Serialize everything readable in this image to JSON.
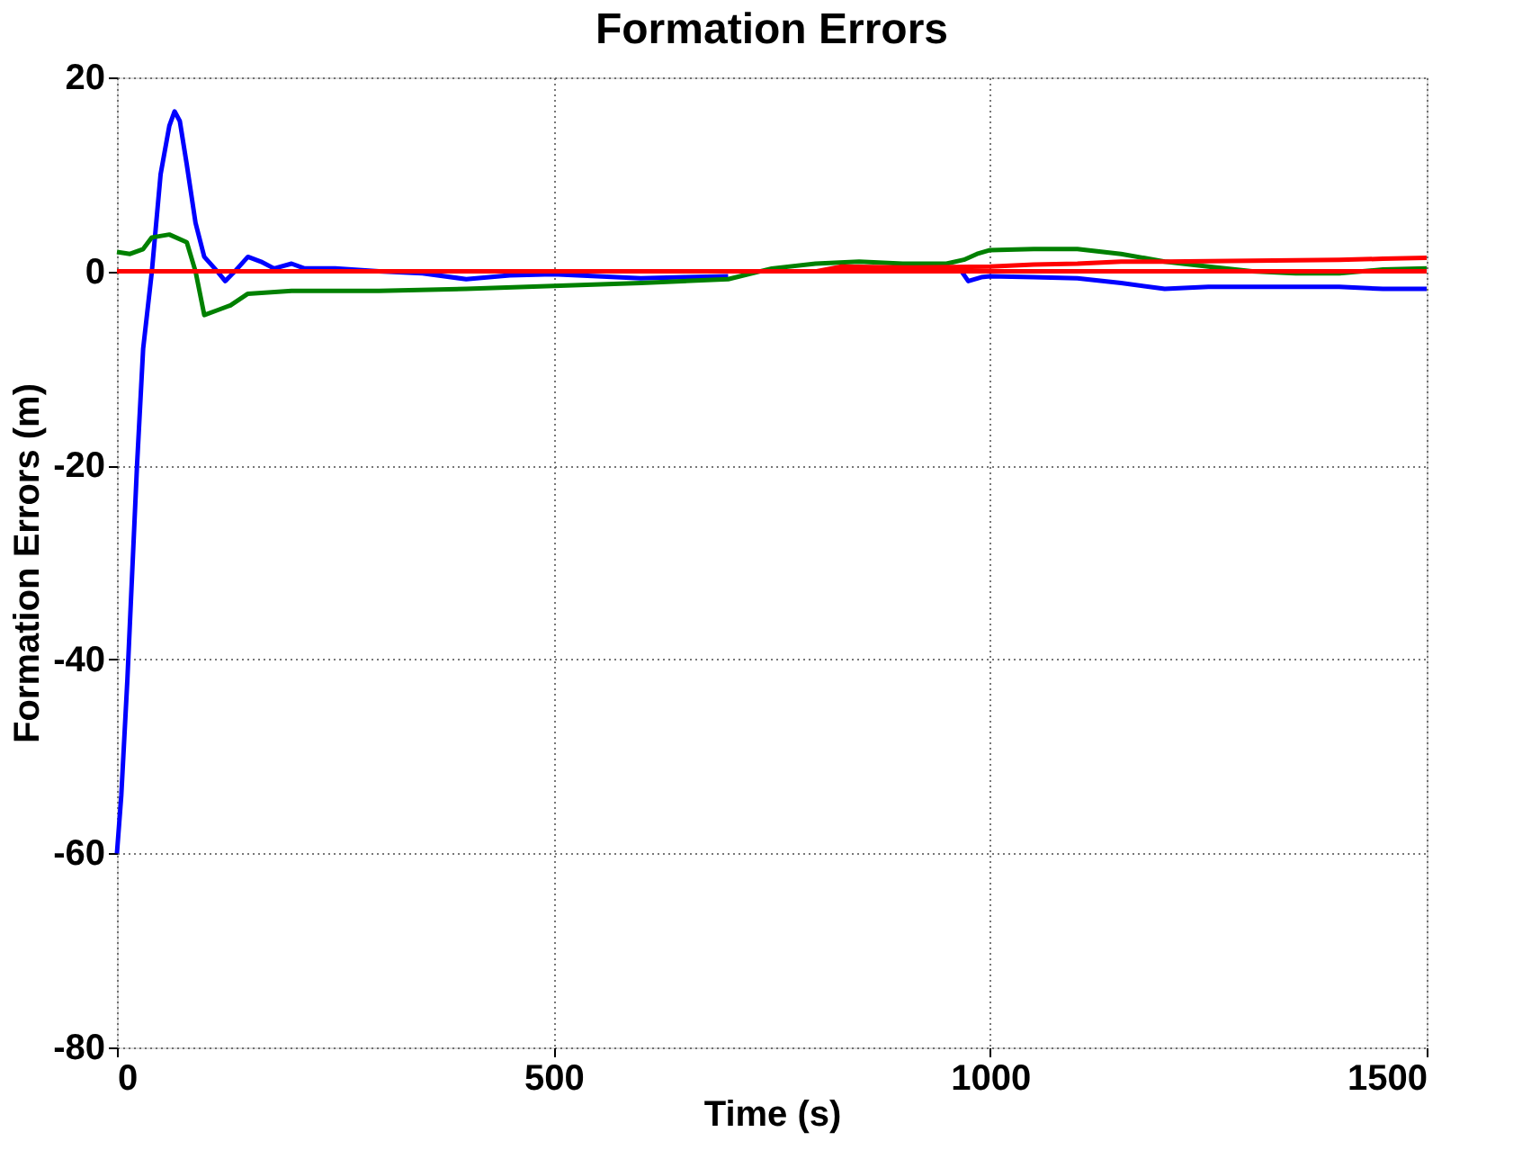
{
  "chart_data": {
    "type": "line",
    "title": "Formation Errors",
    "xlabel": "Time (s)",
    "ylabel": "Formation Errors (m)",
    "xlim": [
      0,
      1500
    ],
    "ylim": [
      -80,
      20
    ],
    "xticks": [
      0,
      500,
      1000,
      1500
    ],
    "yticks": [
      -80,
      -60,
      -40,
      -20,
      0,
      20
    ],
    "grid": true,
    "legend": false,
    "marker": "none",
    "line_style": "solid",
    "series": [
      {
        "color": "#0000ff",
        "x": [
          0,
          5,
          12,
          23,
          30,
          40,
          50,
          60,
          66,
          72,
          80,
          90,
          100,
          115,
          124,
          135,
          150,
          165,
          180,
          200,
          215,
          250,
          300,
          350,
          400,
          450,
          500,
          550,
          600,
          650,
          700,
          750,
          800,
          850,
          900,
          950,
          965,
          975,
          990,
          1000,
          1050,
          1100,
          1150,
          1200,
          1250,
          1300,
          1350,
          1400,
          1450,
          1500
        ],
        "values": [
          -60,
          -54,
          -42,
          -20,
          -8,
          0,
          10,
          15,
          16.5,
          15.5,
          11,
          5,
          1.5,
          0,
          -1,
          0,
          1.5,
          1,
          0.3,
          0.8,
          0.3,
          0.3,
          0,
          -0.2,
          -0.8,
          -0.4,
          -0.3,
          -0.5,
          -0.7,
          -0.6,
          -0.5,
          null,
          null,
          null,
          null,
          null,
          0.3,
          -1,
          -0.6,
          -0.5,
          -0.6,
          -0.7,
          -1.2,
          -1.8,
          -1.6,
          -1.6,
          -1.6,
          -1.6,
          -1.8,
          -1.8
        ]
      },
      {
        "color": "#008000",
        "x": [
          0,
          15,
          30,
          40,
          60,
          80,
          90,
          100,
          115,
          130,
          150,
          200,
          250,
          300,
          400,
          500,
          600,
          700,
          750,
          800,
          850,
          900,
          950,
          970,
          985,
          1000,
          1050,
          1100,
          1150,
          1200,
          1250,
          1300,
          1350,
          1400,
          1450,
          1500
        ],
        "values": [
          2,
          1.8,
          2.3,
          3.5,
          3.8,
          3,
          0,
          -4.5,
          -4,
          -3.5,
          -2.3,
          -2,
          -2,
          -2,
          -1.8,
          -1.5,
          -1.2,
          -0.8,
          0.3,
          0.8,
          1,
          0.8,
          0.8,
          1.2,
          1.8,
          2.2,
          2.3,
          2.3,
          1.8,
          1,
          0.5,
          0,
          -0.2,
          -0.2,
          0.2,
          0.3
        ]
      },
      {
        "color": "#ff0000",
        "x": [
          0,
          800,
          830,
          900,
          1000,
          1050,
          1100,
          1150,
          1200,
          1300,
          1400,
          1450,
          1500
        ],
        "values": [
          0,
          0,
          0.5,
          0.4,
          0.5,
          0.7,
          0.8,
          1,
          1,
          1.1,
          1.2,
          1.3,
          1.4
        ]
      },
      {
        "color": "#ff0000",
        "x": [
          0,
          1500
        ],
        "values": [
          0,
          0
        ]
      }
    ]
  }
}
